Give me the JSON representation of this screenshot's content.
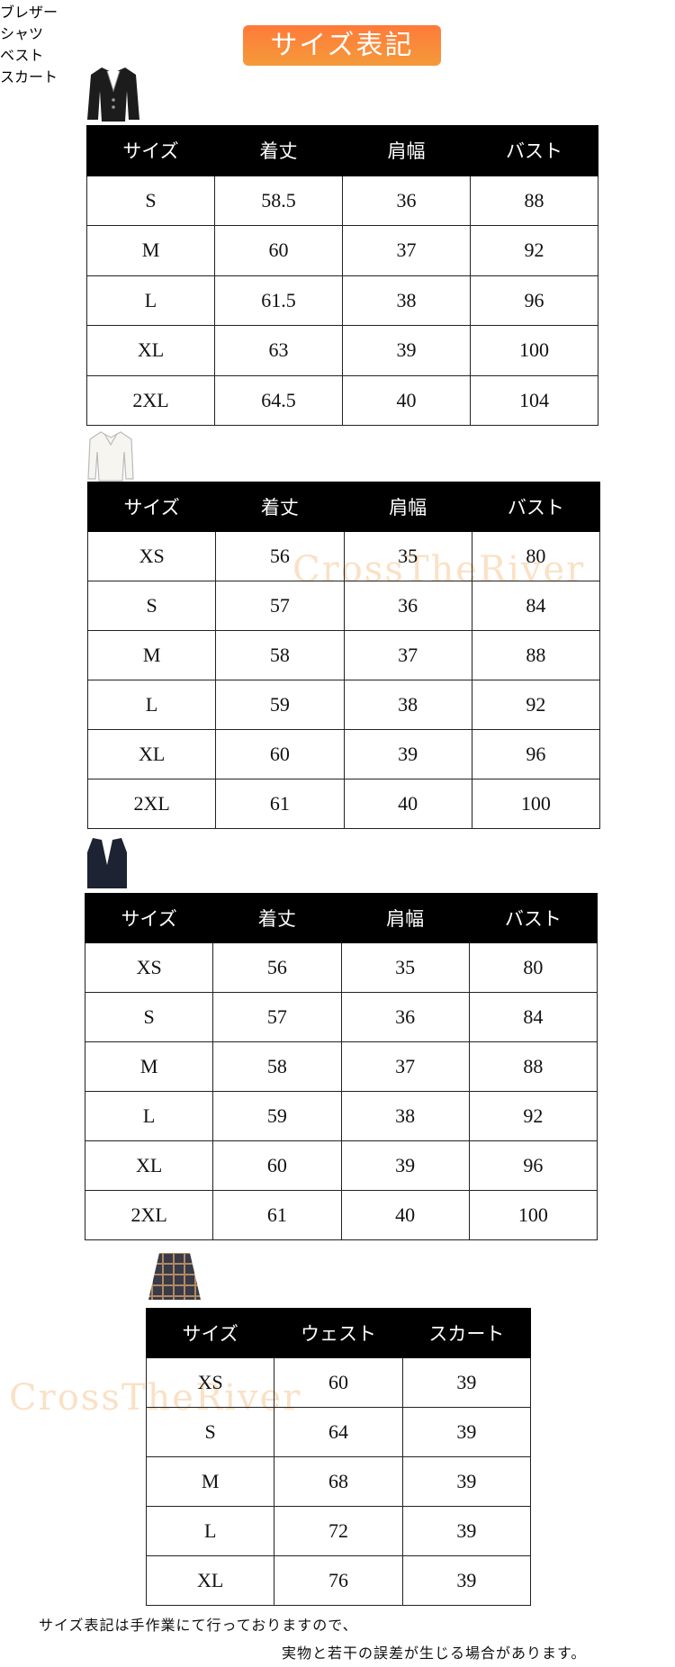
{
  "title": "サイズ表記",
  "watermark": "CrossTheRiver",
  "sections": [
    {
      "heading": "ブレザー",
      "columns": [
        "サイズ",
        "着丈",
        "肩幅",
        "バスト"
      ],
      "rows": [
        [
          "S",
          "58.5",
          "36",
          "88"
        ],
        [
          "M",
          "60",
          "37",
          "92"
        ],
        [
          "L",
          "61.5",
          "38",
          "96"
        ],
        [
          "XL",
          "63",
          "39",
          "100"
        ],
        [
          "2XL",
          "64.5",
          "40",
          "104"
        ]
      ]
    },
    {
      "heading": "シャツ",
      "columns": [
        "サイズ",
        "着丈",
        "肩幅",
        "バスト"
      ],
      "rows": [
        [
          "XS",
          "56",
          "35",
          "80"
        ],
        [
          "S",
          "57",
          "36",
          "84"
        ],
        [
          "M",
          "58",
          "37",
          "88"
        ],
        [
          "L",
          "59",
          "38",
          "92"
        ],
        [
          "XL",
          "60",
          "39",
          "96"
        ],
        [
          "2XL",
          "61",
          "40",
          "100"
        ]
      ]
    },
    {
      "heading": "ベスト",
      "columns": [
        "サイズ",
        "着丈",
        "肩幅",
        "バスト"
      ],
      "rows": [
        [
          "XS",
          "56",
          "35",
          "80"
        ],
        [
          "S",
          "57",
          "36",
          "84"
        ],
        [
          "M",
          "58",
          "37",
          "88"
        ],
        [
          "L",
          "59",
          "38",
          "92"
        ],
        [
          "XL",
          "60",
          "39",
          "96"
        ],
        [
          "2XL",
          "61",
          "40",
          "100"
        ]
      ]
    },
    {
      "heading": "スカート",
      "columns": [
        "サイズ",
        "ウェスト",
        "スカート"
      ],
      "rows": [
        [
          "XS",
          "60",
          "39"
        ],
        [
          "S",
          "64",
          "39"
        ],
        [
          "M",
          "68",
          "39"
        ],
        [
          "L",
          "72",
          "39"
        ],
        [
          "XL",
          "76",
          "39"
        ]
      ]
    }
  ],
  "note": [
    "サイズ表記は手作業にて行っておりますので、",
    "実物と若干の誤差が生じる場合があります。"
  ]
}
